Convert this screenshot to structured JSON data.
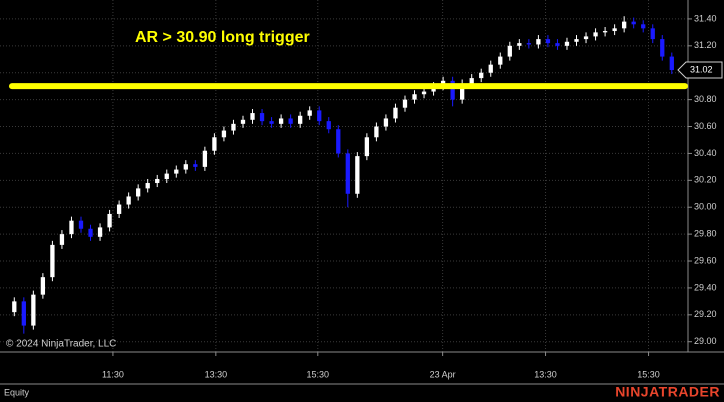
{
  "chart_data": {
    "type": "candlestick",
    "annotation": "AR > 30.90 long trigger",
    "annotation_color": "#ffff00",
    "hline": {
      "value": 30.9,
      "color": "#ffff00"
    },
    "last_price": 31.02,
    "copyright": "© 2024 NinjaTrader, LLC",
    "instrument_label": "Equity",
    "brand": "NINJATRADER",
    "up_color": "#ffffff",
    "down_color": "#1a1aff",
    "grid": true,
    "xlim": [
      -1.5,
      70.7
    ],
    "xticks": [
      {
        "value": 10.35,
        "label": "11:30"
      },
      {
        "value": 21.15,
        "label": "13:30"
      },
      {
        "value": 31.85,
        "label": "15:30"
      },
      {
        "value": 44.95,
        "label": "23 Apr"
      },
      {
        "value": 55.75,
        "label": "13:30"
      },
      {
        "value": 66.56,
        "label": "15:30"
      }
    ],
    "ylim": [
      28.9236,
      31.5407
    ],
    "yticks": [
      {
        "value": 29.0,
        "label": "29.00"
      },
      {
        "value": 29.2,
        "label": "29.20"
      },
      {
        "value": 29.4,
        "label": "29.40"
      },
      {
        "value": 29.6,
        "label": "29.60"
      },
      {
        "value": 29.8,
        "label": "29.80"
      },
      {
        "value": 30.0,
        "label": "30.00"
      },
      {
        "value": 30.2,
        "label": "30.20"
      },
      {
        "value": 30.4,
        "label": "30.40"
      },
      {
        "value": 30.6,
        "label": "30.60"
      },
      {
        "value": 30.8,
        "label": "30.80"
      },
      {
        "value": 31.0,
        "label": "31.00"
      },
      {
        "value": 31.2,
        "label": "31.20"
      },
      {
        "value": 31.4,
        "label": "31.40"
      }
    ],
    "open": [
      29.22,
      29.3,
      29.12,
      29.35,
      29.48,
      29.72,
      29.8,
      29.9,
      29.84,
      29.78,
      29.85,
      29.95,
      30.02,
      30.08,
      30.14,
      30.18,
      30.21,
      30.25,
      30.28,
      30.32,
      30.3,
      30.42,
      30.52,
      30.57,
      30.62,
      30.65,
      30.7,
      30.64,
      30.62,
      30.66,
      30.62,
      30.68,
      30.72,
      30.64,
      30.58,
      30.4,
      30.1,
      30.38,
      30.52,
      30.6,
      30.66,
      30.74,
      30.8,
      30.84,
      30.86,
      30.9,
      30.94,
      30.8,
      30.92,
      30.96,
      31.0,
      31.06,
      31.12,
      31.2,
      31.22,
      31.21,
      31.25,
      31.22,
      31.2,
      31.23,
      31.25,
      31.27,
      31.3,
      31.31,
      31.33,
      31.38,
      31.36,
      31.33,
      31.25,
      31.12
    ],
    "high": [
      29.33,
      29.33,
      29.38,
      29.51,
      29.75,
      29.83,
      29.93,
      29.93,
      29.87,
      29.88,
      29.98,
      30.05,
      30.11,
      30.17,
      30.21,
      30.24,
      30.28,
      30.31,
      30.35,
      30.35,
      30.45,
      30.55,
      30.6,
      30.65,
      30.68,
      30.73,
      30.73,
      30.67,
      30.69,
      30.69,
      30.71,
      30.75,
      30.75,
      30.67,
      30.61,
      30.43,
      30.41,
      30.55,
      30.63,
      30.69,
      30.77,
      30.83,
      30.87,
      30.89,
      30.93,
      30.97,
      30.97,
      30.95,
      30.99,
      31.03,
      31.09,
      31.15,
      31.23,
      31.25,
      31.25,
      31.28,
      31.28,
      31.25,
      31.26,
      31.28,
      31.3,
      31.33,
      31.34,
      31.36,
      31.42,
      31.41,
      31.39,
      31.36,
      31.28,
      31.15
    ],
    "low": [
      29.19,
      29.06,
      29.09,
      29.32,
      29.45,
      29.69,
      29.77,
      29.81,
      29.75,
      29.75,
      29.82,
      29.92,
      29.99,
      30.05,
      30.11,
      30.15,
      30.18,
      30.22,
      30.25,
      30.27,
      30.27,
      30.39,
      30.49,
      30.54,
      30.59,
      30.62,
      30.61,
      30.59,
      30.59,
      30.59,
      30.59,
      30.65,
      30.61,
      30.55,
      30.37,
      30.0,
      30.07,
      30.35,
      30.49,
      30.57,
      30.63,
      30.71,
      30.77,
      30.81,
      30.83,
      30.87,
      30.75,
      30.77,
      30.89,
      30.93,
      30.97,
      31.03,
      31.09,
      31.17,
      31.18,
      31.18,
      31.19,
      31.17,
      31.17,
      31.2,
      31.22,
      31.24,
      31.27,
      31.28,
      31.3,
      31.33,
      31.3,
      31.22,
      31.09,
      30.99
    ],
    "close": [
      29.3,
      29.12,
      29.35,
      29.48,
      29.72,
      29.8,
      29.9,
      29.84,
      29.78,
      29.85,
      29.95,
      30.02,
      30.08,
      30.14,
      30.18,
      30.21,
      30.25,
      30.28,
      30.32,
      30.3,
      30.42,
      30.52,
      30.57,
      30.62,
      30.65,
      30.7,
      30.64,
      30.62,
      30.66,
      30.62,
      30.68,
      30.72,
      30.64,
      30.58,
      30.4,
      30.1,
      30.38,
      30.52,
      30.6,
      30.66,
      30.74,
      30.8,
      30.84,
      30.86,
      30.9,
      30.94,
      30.8,
      30.92,
      30.96,
      31.0,
      31.06,
      31.12,
      31.2,
      31.22,
      31.21,
      31.25,
      31.22,
      31.2,
      31.23,
      31.25,
      31.27,
      31.3,
      31.31,
      31.33,
      31.38,
      31.36,
      31.33,
      31.25,
      31.12,
      31.02
    ]
  }
}
